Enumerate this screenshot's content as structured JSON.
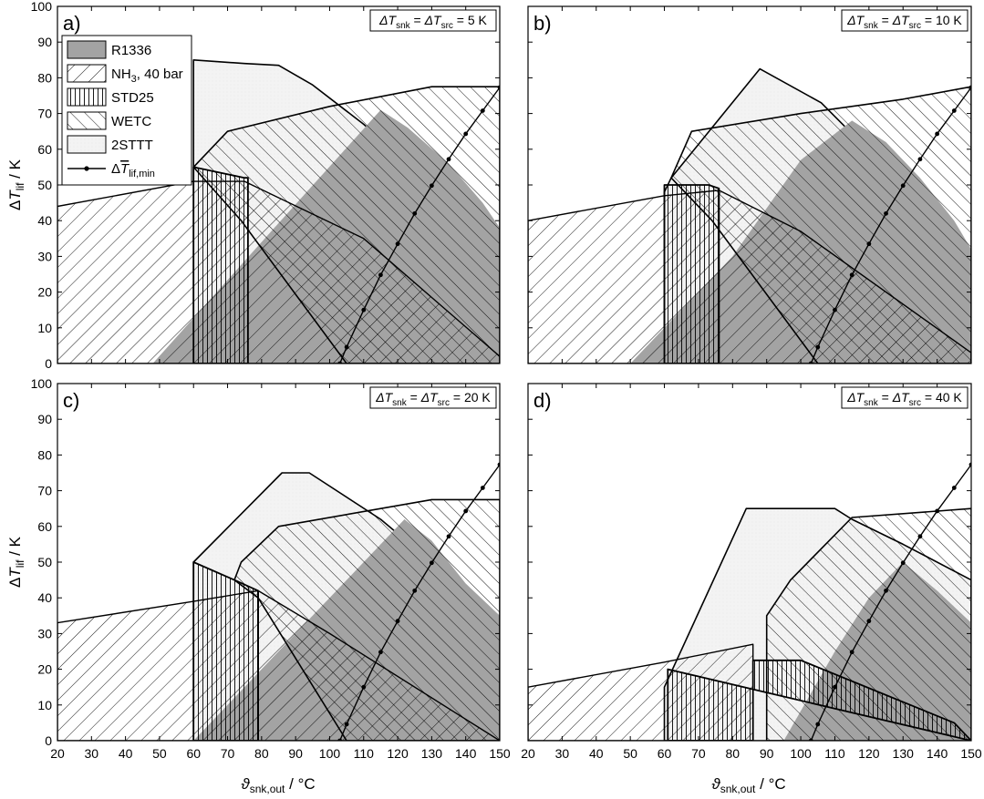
{
  "y_axis_label": {
    "delta": "Δ",
    "T": "T",
    "sub": "lif",
    "unit": " / K"
  },
  "x_axis_label": {
    "theta": "ϑ",
    "sub": "snk,out",
    "unit": " / °C"
  },
  "legend": {
    "placement": "panel a, top-left",
    "entries": [
      {
        "key": "R1336",
        "label": "R1336",
        "style": "gray-fill"
      },
      {
        "key": "NH3",
        "label_main": "NH",
        "label_sub": "3",
        "label_rest": ", 40 bar",
        "style": "hatch-forward"
      },
      {
        "key": "STD25",
        "label": "STD25",
        "style": "hatch-vertical"
      },
      {
        "key": "WETC",
        "label": "WETC",
        "style": "hatch-back"
      },
      {
        "key": "2STTT",
        "label": "2STTT",
        "style": "light-fill"
      },
      {
        "key": "min",
        "label_main": "ΔT",
        "label_sub": "lif,min",
        "style": "line-dots"
      }
    ]
  },
  "colors": {
    "r1336": "#a3a3a3",
    "light": "#f1f1f1",
    "line": "#000000"
  },
  "chart_data": [
    {
      "type": "area",
      "panel_label": "a)",
      "condition": {
        "lhs": "ΔT",
        "lhs_sub": "snk",
        "eq": " = ",
        "rhs": "ΔT",
        "rhs_sub": "src",
        "val": " = 5 K"
      },
      "xlim": [
        20,
        150
      ],
      "ylim": [
        0,
        100
      ],
      "xticks": [
        "20",
        "30",
        "40",
        "50",
        "60",
        "70",
        "80",
        "90",
        "100",
        "110",
        "120",
        "130",
        "140",
        "150"
      ],
      "yticks": [
        "0",
        "10",
        "20",
        "30",
        "40",
        "50",
        "60",
        "70",
        "80",
        "90",
        "100"
      ],
      "regions": {
        "2STTT": [
          [
            60,
            85
          ],
          [
            75,
            84
          ],
          [
            85,
            83.5
          ],
          [
            95,
            78
          ],
          [
            110,
            67
          ],
          [
            130,
            50
          ],
          [
            150,
            28
          ],
          [
            150,
            0
          ],
          [
            60,
            0
          ]
        ],
        "R1336": [
          [
            48,
            0
          ],
          [
            80,
            34
          ],
          [
            115,
            71
          ],
          [
            123,
            66
          ],
          [
            135,
            56
          ],
          [
            145,
            45
          ],
          [
            150,
            38
          ],
          [
            150,
            0
          ]
        ],
        "WETC": [
          [
            60,
            55
          ],
          [
            70,
            65
          ],
          [
            100,
            72
          ],
          [
            130,
            77.5
          ],
          [
            150,
            77.5
          ],
          [
            150,
            0
          ],
          [
            105,
            0
          ],
          [
            74,
            40
          ],
          [
            60,
            55
          ]
        ],
        "NH3": [
          [
            20,
            44
          ],
          [
            60,
            51
          ],
          [
            75,
            51
          ],
          [
            110,
            35
          ],
          [
            150,
            2
          ],
          [
            150,
            0
          ],
          [
            20,
            0
          ]
        ],
        "STD25": [
          [
            60,
            55
          ],
          [
            60,
            0
          ],
          [
            76,
            0
          ],
          [
            76,
            52
          ],
          [
            75,
            52
          ],
          [
            60,
            55
          ]
        ]
      },
      "min_line": {
        "x": [
          103,
          105,
          110,
          115,
          120,
          125,
          130,
          135,
          140,
          145,
          150
        ],
        "y": [
          0,
          4.6,
          15,
          24.8,
          33.5,
          42,
          49.8,
          57.2,
          64.3,
          70.8,
          77.3
        ]
      }
    },
    {
      "type": "area",
      "panel_label": "b)",
      "condition": {
        "lhs": "ΔT",
        "lhs_sub": "snk",
        "eq": " = ",
        "rhs": "ΔT",
        "rhs_sub": "src",
        "val": " = 10 K"
      },
      "xlim": [
        20,
        150
      ],
      "ylim": [
        0,
        100
      ],
      "xticks": [
        "20",
        "30",
        "40",
        "50",
        "60",
        "70",
        "80",
        "90",
        "100",
        "110",
        "120",
        "130",
        "140",
        "150"
      ],
      "yticks": [
        "0",
        "10",
        "20",
        "30",
        "40",
        "50",
        "60",
        "70",
        "80",
        "90",
        "100"
      ],
      "regions": {
        "2STTT": [
          [
            60,
            48
          ],
          [
            62,
            52
          ],
          [
            88,
            82.5
          ],
          [
            106,
            73
          ],
          [
            130,
            50
          ],
          [
            150,
            30
          ],
          [
            150,
            0
          ],
          [
            60,
            0
          ]
        ],
        "R1336": [
          [
            50,
            0
          ],
          [
            80,
            30
          ],
          [
            100,
            57
          ],
          [
            115,
            68
          ],
          [
            125,
            62
          ],
          [
            135,
            52
          ],
          [
            145,
            40
          ],
          [
            150,
            32
          ],
          [
            150,
            0
          ]
        ],
        "WETC": [
          [
            62,
            52
          ],
          [
            68,
            65
          ],
          [
            100,
            70
          ],
          [
            130,
            74
          ],
          [
            150,
            77.5
          ],
          [
            150,
            0
          ],
          [
            105,
            0
          ],
          [
            74,
            40
          ],
          [
            62,
            52
          ]
        ],
        "NH3": [
          [
            20,
            40
          ],
          [
            60,
            47
          ],
          [
            76,
            48.5
          ],
          [
            100,
            37
          ],
          [
            150,
            3
          ],
          [
            150,
            0
          ],
          [
            20,
            0
          ]
        ],
        "STD25": [
          [
            60,
            50
          ],
          [
            60,
            0
          ],
          [
            76,
            0
          ],
          [
            76,
            49
          ],
          [
            73,
            50
          ]
        ]
      },
      "min_line": {
        "x": [
          103,
          105,
          110,
          115,
          120,
          125,
          130,
          135,
          140,
          145,
          150
        ],
        "y": [
          0,
          4.6,
          15,
          24.8,
          33.5,
          42,
          49.8,
          57.2,
          64.3,
          70.8,
          77.3
        ]
      }
    },
    {
      "type": "area",
      "panel_label": "c)",
      "condition": {
        "lhs": "ΔT",
        "lhs_sub": "snk",
        "eq": " = ",
        "rhs": "ΔT",
        "rhs_sub": "src",
        "val": " = 20 K"
      },
      "xlim": [
        20,
        150
      ],
      "ylim": [
        0,
        100
      ],
      "xticks": [
        "20",
        "30",
        "40",
        "50",
        "60",
        "70",
        "80",
        "90",
        "100",
        "110",
        "120",
        "130",
        "140",
        "150"
      ],
      "yticks": [
        "0",
        "10",
        "20",
        "30",
        "40",
        "50",
        "60",
        "70",
        "80",
        "90",
        "100"
      ],
      "regions": {
        "2STTT": [
          [
            60,
            50
          ],
          [
            86,
            75
          ],
          [
            94,
            75
          ],
          [
            115,
            62
          ],
          [
            130,
            50
          ],
          [
            150,
            30
          ],
          [
            150,
            0
          ],
          [
            60,
            0
          ]
        ],
        "R1336": [
          [
            60,
            0
          ],
          [
            95,
            35
          ],
          [
            110,
            50
          ],
          [
            122,
            62
          ],
          [
            130,
            56
          ],
          [
            140,
            44
          ],
          [
            150,
            35
          ],
          [
            150,
            0
          ]
        ],
        "WETC": [
          [
            72,
            45
          ],
          [
            74,
            50
          ],
          [
            85,
            60
          ],
          [
            130,
            67.5
          ],
          [
            150,
            67.5
          ],
          [
            150,
            0
          ],
          [
            105,
            0
          ],
          [
            79,
            40
          ],
          [
            72,
            45
          ]
        ],
        "NH3": [
          [
            20,
            33
          ],
          [
            60,
            39
          ],
          [
            79,
            42
          ],
          [
            100,
            30
          ],
          [
            150,
            0
          ],
          [
            20,
            0
          ]
        ],
        "STD25": [
          [
            60,
            50
          ],
          [
            60,
            0
          ],
          [
            79,
            0
          ],
          [
            79,
            42
          ],
          [
            72,
            45
          ]
        ]
      },
      "min_line": {
        "x": [
          103,
          105,
          110,
          115,
          120,
          125,
          130,
          135,
          140,
          145,
          150
        ],
        "y": [
          0,
          4.6,
          15,
          24.8,
          33.5,
          42,
          49.8,
          57.2,
          64.3,
          70.8,
          77.3
        ]
      }
    },
    {
      "type": "area",
      "panel_label": "d)",
      "condition": {
        "lhs": "ΔT",
        "lhs_sub": "snk",
        "eq": " = ",
        "rhs": "ΔT",
        "rhs_sub": "src",
        "val": " = 40 K"
      },
      "xlim": [
        20,
        150
      ],
      "ylim": [
        0,
        100
      ],
      "xticks": [
        "20",
        "30",
        "40",
        "50",
        "60",
        "70",
        "80",
        "90",
        "100",
        "110",
        "120",
        "130",
        "140",
        "150"
      ],
      "yticks": [
        "0",
        "10",
        "20",
        "30",
        "40",
        "50",
        "60",
        "70",
        "80",
        "90",
        "100"
      ],
      "regions": {
        "2STTT": [
          [
            60,
            15
          ],
          [
            84,
            65
          ],
          [
            110,
            65
          ],
          [
            115,
            62
          ],
          [
            130,
            55
          ],
          [
            150,
            45
          ],
          [
            150,
            0
          ],
          [
            60,
            0
          ]
        ],
        "R1336": [
          [
            95,
            0
          ],
          [
            110,
            25
          ],
          [
            120,
            40
          ],
          [
            130,
            50
          ],
          [
            140,
            42
          ],
          [
            150,
            33
          ],
          [
            150,
            0
          ]
        ],
        "WETC": [
          [
            90,
            35
          ],
          [
            97,
            45
          ],
          [
            115,
            62.5
          ],
          [
            150,
            65
          ],
          [
            150,
            0
          ],
          [
            103,
            0
          ],
          [
            90,
            0
          ]
        ],
        "NH3": [
          [
            20,
            15
          ],
          [
            60,
            22
          ],
          [
            86,
            27
          ],
          [
            86,
            0
          ],
          [
            20,
            0
          ]
        ],
        "STD25": [
          [
            61,
            20
          ],
          [
            61,
            0
          ],
          [
            86,
            0
          ],
          [
            86,
            22.5
          ],
          [
            100,
            22.5
          ],
          [
            145,
            5
          ],
          [
            150,
            0
          ],
          [
            150,
            0
          ]
        ]
      },
      "min_line": {
        "x": [
          103,
          105,
          110,
          115,
          120,
          125,
          130,
          135,
          140,
          145,
          150
        ],
        "y": [
          0,
          4.6,
          15,
          24.8,
          33.5,
          42,
          49.8,
          57.2,
          64.3,
          70.8,
          77.3
        ]
      }
    }
  ]
}
